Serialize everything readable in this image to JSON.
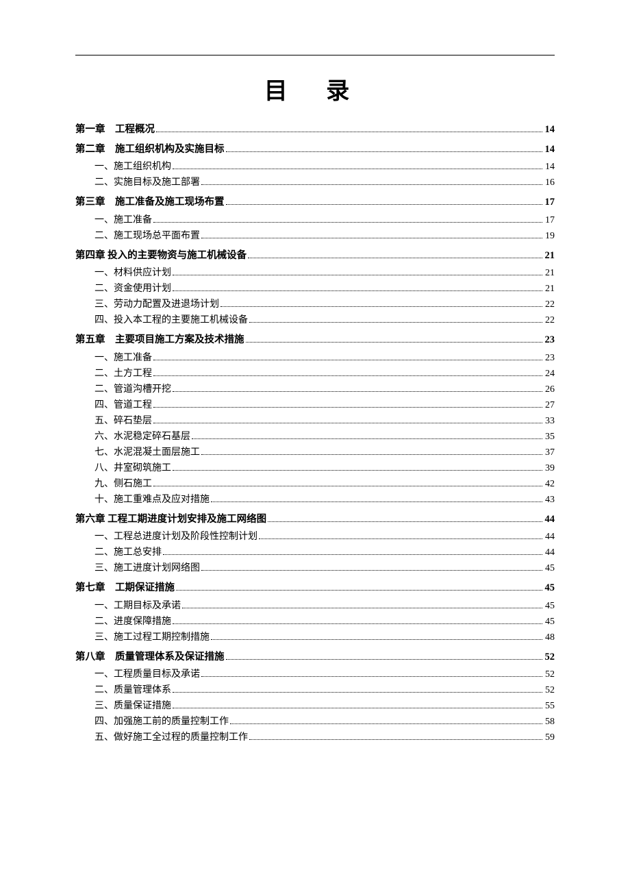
{
  "title": "目 录",
  "toc": [
    {
      "type": "chapter",
      "label": "第一章　工程概况",
      "page": "14"
    },
    {
      "type": "chapter",
      "label": "第二章　施工组织机构及实施目标",
      "page": "14"
    },
    {
      "type": "section",
      "label": "一、施工组织机构",
      "page": "14"
    },
    {
      "type": "section",
      "label": "二、实施目标及施工部署",
      "page": "16"
    },
    {
      "type": "chapter",
      "label": "第三章　施工准备及施工现场布置",
      "page": "17"
    },
    {
      "type": "section",
      "label": "一、施工准备",
      "page": "17"
    },
    {
      "type": "section",
      "label": "二、施工现场总平面布置",
      "page": "19"
    },
    {
      "type": "chapter",
      "label": "第四章 投入的主要物资与施工机械设备",
      "page": "21"
    },
    {
      "type": "section",
      "label": "一、材料供应计划",
      "page": "21"
    },
    {
      "type": "section",
      "label": "二、资金使用计划",
      "page": "21"
    },
    {
      "type": "section",
      "label": "三、劳动力配置及进退场计划",
      "page": "22"
    },
    {
      "type": "section",
      "label": "四、投入本工程的主要施工机械设备",
      "page": "22"
    },
    {
      "type": "chapter",
      "label": "第五章　主要项目施工方案及技术措施",
      "page": "23"
    },
    {
      "type": "section",
      "label": "一、施工准备",
      "page": "23"
    },
    {
      "type": "section",
      "label": "二、土方工程",
      "page": "24"
    },
    {
      "type": "section",
      "label": "二、管道沟槽开挖",
      "page": "26"
    },
    {
      "type": "section",
      "label": "四、管道工程",
      "page": "27"
    },
    {
      "type": "section",
      "label": "五、碎石垫层",
      "page": "33"
    },
    {
      "type": "section",
      "label": "六、水泥稳定碎石基层",
      "page": "35"
    },
    {
      "type": "section",
      "label": "七、水泥混凝土面层施工",
      "page": "37"
    },
    {
      "type": "section",
      "label": "八、井室砌筑施工",
      "page": "39"
    },
    {
      "type": "section",
      "label": "九、侧石施工",
      "page": "42"
    },
    {
      "type": "section",
      "label": "十、施工重难点及应对措施",
      "page": "43"
    },
    {
      "type": "chapter",
      "label": "第六章 工程工期进度计划安排及施工网络图",
      "page": "44"
    },
    {
      "type": "section",
      "label": "一、工程总进度计划及阶段性控制计划",
      "page": "44"
    },
    {
      "type": "section",
      "label": "二、施工总安排",
      "page": "44"
    },
    {
      "type": "section",
      "label": "三、施工进度计划网络图",
      "page": "45"
    },
    {
      "type": "chapter",
      "label": "第七章　工期保证措施",
      "page": "45"
    },
    {
      "type": "section",
      "label": "一、工期目标及承诺",
      "page": "45"
    },
    {
      "type": "section",
      "label": "二、进度保障措施",
      "page": "45"
    },
    {
      "type": "section",
      "label": "三、施工过程工期控制措施",
      "page": "48"
    },
    {
      "type": "chapter",
      "label": "第八章　质量管理体系及保证措施",
      "page": "52"
    },
    {
      "type": "section",
      "label": "一、工程质量目标及承诺",
      "page": "52"
    },
    {
      "type": "section",
      "label": "二、质量管理体系",
      "page": "52"
    },
    {
      "type": "section",
      "label": "三、质量保证措施",
      "page": "55"
    },
    {
      "type": "section",
      "label": "四、加强施工前的质量控制工作",
      "page": "58"
    },
    {
      "type": "section",
      "label": "五、做好施工全过程的质量控制工作",
      "page": "59"
    }
  ]
}
